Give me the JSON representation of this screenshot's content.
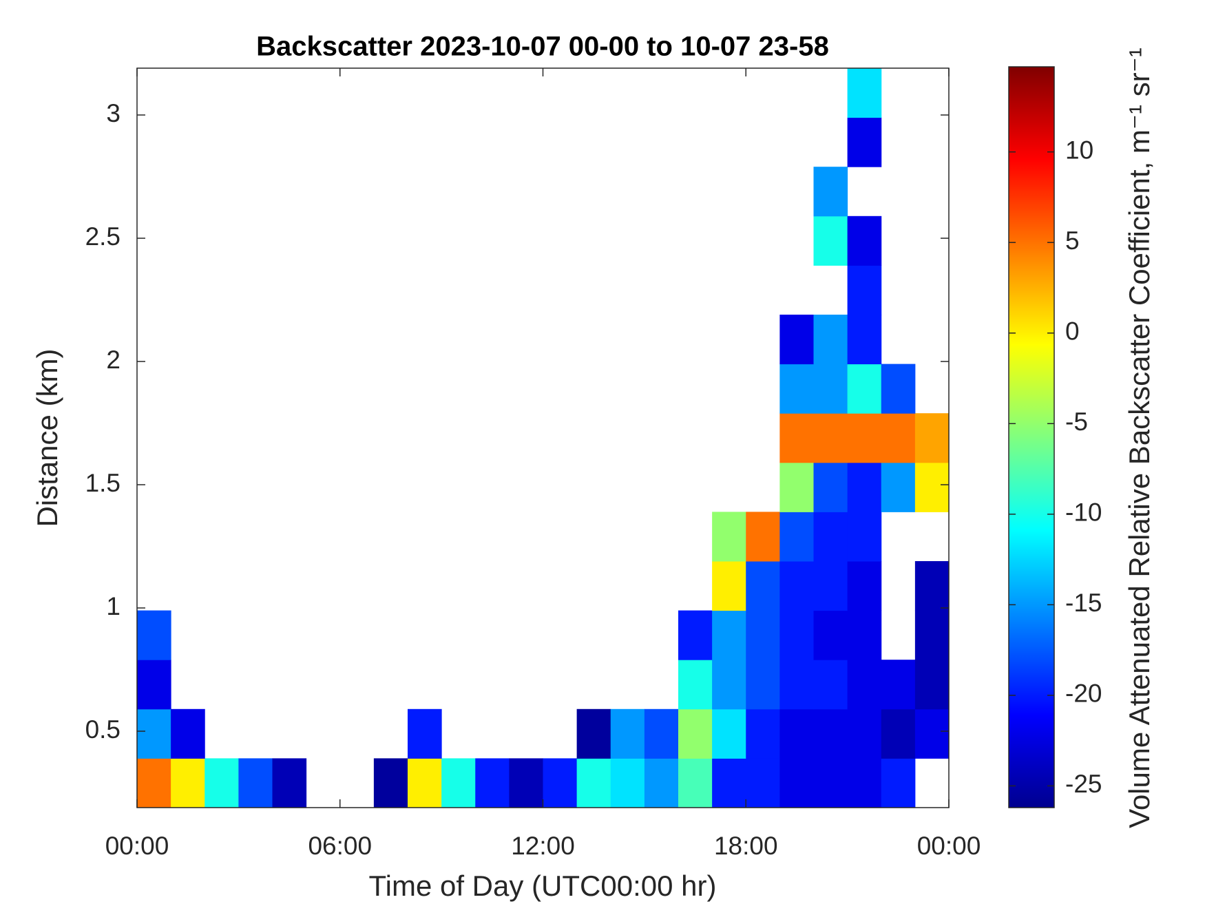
{
  "chart_data": {
    "type": "heatmap",
    "title": "Backscatter 2023-10-07 00-00 to 10-07 23-58",
    "x_label": "Time of Day (UTC00:00 hr)",
    "y_label": "Distance (km)",
    "colorbar_label": "Volume Attenuated Relative Backscatter Coefficient, m⁻¹ sr⁻¹",
    "colormap": "jet",
    "xlim": [
      0,
      24
    ],
    "xticks": [
      {
        "value": 0,
        "label": "00:00"
      },
      {
        "value": 6,
        "label": "06:00"
      },
      {
        "value": 12,
        "label": "12:00"
      },
      {
        "value": 18,
        "label": "18:00"
      },
      {
        "value": 24,
        "label": "00:00"
      }
    ],
    "ylim": [
      0.19,
      3.19
    ],
    "yticks": [
      0.5,
      1,
      1.5,
      2,
      2.5,
      3
    ],
    "clim": [
      -26.2,
      14.7
    ],
    "cticks": [
      -25,
      -20,
      -15,
      -10,
      -5,
      0,
      5,
      10
    ],
    "x_bins": [
      0,
      1,
      2,
      3,
      4,
      5,
      6,
      7,
      8,
      9,
      10,
      11,
      12,
      13,
      14,
      15,
      16,
      17,
      18,
      19,
      20,
      21,
      22,
      23,
      24
    ],
    "y_bins": [
      0.19,
      0.39,
      0.59,
      0.79,
      0.99,
      1.19,
      1.39,
      1.59,
      1.79,
      1.99,
      2.19,
      2.39,
      2.59,
      2.79,
      2.99,
      3.19
    ],
    "z": [
      [
        5,
        0,
        -10,
        -18,
        -24,
        null,
        null,
        -25,
        0,
        -10,
        -20,
        -24,
        -20,
        -10,
        -12,
        -15,
        -8,
        -20,
        -20,
        -22,
        -22,
        -22,
        -20,
        null
      ],
      [
        -15,
        -22,
        null,
        null,
        null,
        null,
        null,
        null,
        -20,
        null,
        null,
        null,
        null,
        -25,
        -15,
        -18,
        -5,
        -12,
        -20,
        -22,
        -22,
        -22,
        -24,
        -22
      ],
      [
        -22,
        null,
        null,
        null,
        null,
        null,
        null,
        null,
        null,
        null,
        null,
        null,
        null,
        null,
        null,
        null,
        -10,
        -15,
        -18,
        -20,
        -20,
        -22,
        -22,
        -24
      ],
      [
        -18,
        null,
        null,
        null,
        null,
        null,
        null,
        null,
        null,
        null,
        null,
        null,
        null,
        null,
        null,
        null,
        -20,
        -15,
        -18,
        -20,
        -22,
        -22,
        null,
        -24
      ],
      [
        null,
        null,
        null,
        null,
        null,
        null,
        null,
        null,
        null,
        null,
        null,
        null,
        null,
        null,
        null,
        null,
        null,
        0,
        -18,
        -20,
        -20,
        -22,
        null,
        -24
      ],
      [
        null,
        null,
        null,
        null,
        null,
        null,
        null,
        null,
        null,
        null,
        null,
        null,
        null,
        null,
        null,
        null,
        null,
        -5,
        5,
        -18,
        -20,
        -20,
        null,
        null
      ],
      [
        null,
        null,
        null,
        null,
        null,
        null,
        null,
        null,
        null,
        null,
        null,
        null,
        null,
        null,
        null,
        null,
        null,
        null,
        null,
        -5,
        -18,
        -20,
        -15,
        0
      ],
      [
        null,
        null,
        null,
        null,
        null,
        null,
        null,
        null,
        null,
        null,
        null,
        null,
        null,
        null,
        null,
        null,
        null,
        null,
        null,
        5,
        5,
        5,
        5,
        3
      ],
      [
        null,
        null,
        null,
        null,
        null,
        null,
        null,
        null,
        null,
        null,
        null,
        null,
        null,
        null,
        null,
        null,
        null,
        null,
        null,
        -15,
        -15,
        -10,
        -18,
        null
      ],
      [
        null,
        null,
        null,
        null,
        null,
        null,
        null,
        null,
        null,
        null,
        null,
        null,
        null,
        null,
        null,
        null,
        null,
        null,
        null,
        -22,
        -15,
        -20,
        null,
        null
      ],
      [
        null,
        null,
        null,
        null,
        null,
        null,
        null,
        null,
        null,
        null,
        null,
        null,
        null,
        null,
        null,
        null,
        null,
        null,
        null,
        null,
        null,
        -20,
        null,
        null
      ],
      [
        null,
        null,
        null,
        null,
        null,
        null,
        null,
        null,
        null,
        null,
        null,
        null,
        null,
        null,
        null,
        null,
        null,
        null,
        null,
        null,
        -10,
        -22,
        null,
        null
      ],
      [
        null,
        null,
        null,
        null,
        null,
        null,
        null,
        null,
        null,
        null,
        null,
        null,
        null,
        null,
        null,
        null,
        null,
        null,
        null,
        null,
        -15,
        null,
        null,
        null
      ],
      [
        null,
        null,
        null,
        null,
        null,
        null,
        null,
        null,
        null,
        null,
        null,
        null,
        null,
        null,
        null,
        null,
        null,
        null,
        null,
        null,
        null,
        -22,
        null,
        null
      ],
      [
        null,
        null,
        null,
        null,
        null,
        null,
        null,
        null,
        null,
        null,
        null,
        null,
        null,
        null,
        null,
        null,
        null,
        null,
        null,
        null,
        null,
        -12,
        null,
        null
      ]
    ]
  }
}
